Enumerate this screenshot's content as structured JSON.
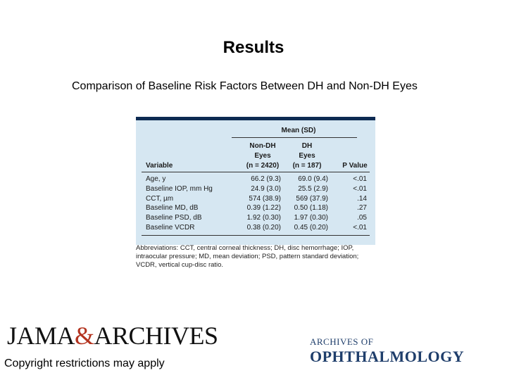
{
  "slide": {
    "title": "Results",
    "subtitle": "Comparison of Baseline Risk Factors Between DH and Non-DH Eyes",
    "copyright": "Copyright restrictions may apply"
  },
  "table": {
    "mean_header": "Mean (SD)",
    "columns": {
      "variable": "Variable",
      "non_dh": [
        "Non-DH",
        "Eyes",
        "(n = 2420)"
      ],
      "dh": [
        "DH",
        "Eyes",
        "(n = 187)"
      ],
      "p": "P Value"
    },
    "rows": [
      {
        "variable": "Age, y",
        "non_dh": "66.2 (9.3)",
        "dh": "69.0 (9.4)",
        "p": "<.01"
      },
      {
        "variable": "Baseline IOP, mm Hg",
        "non_dh": "24.9 (3.0)",
        "dh": "25.5 (2.9)",
        "p": "<.01"
      },
      {
        "variable": "CCT, µm",
        "non_dh": "574 (38.9)",
        "dh": "569 (37.9)",
        "p": ".14"
      },
      {
        "variable": "Baseline MD, dB",
        "non_dh": "0.39 (1.22)",
        "dh": "0.50 (1.18)",
        "p": ".27"
      },
      {
        "variable": "Baseline PSD, dB",
        "non_dh": "1.92 (0.30)",
        "dh": "1.97 (0.30)",
        "p": ".05"
      },
      {
        "variable": "Baseline VCDR",
        "non_dh": "0.38 (0.20)",
        "dh": "0.45 (0.20)",
        "p": "<.01"
      }
    ],
    "abbreviations": "Abbreviations: CCT, central corneal thickness; DH, disc hemorrhage; IOP, intraocular pressure; MD, mean deviation; PSD, pattern standard deviation; VCDR, vertical cup-disc ratio."
  },
  "logos": {
    "jama_left": "JAMA",
    "jama_amp": "&",
    "jama_right": "ARCHIVES",
    "archives_small": "ARCHIVES OF",
    "archives_big": "OPHTHALMOLOGY"
  },
  "colors": {
    "table_bg": "#d6e7f2",
    "table_top_bar": "#0d2a52",
    "jama_amp": "#b3331f",
    "archives_logo": "#1f3e6b"
  }
}
